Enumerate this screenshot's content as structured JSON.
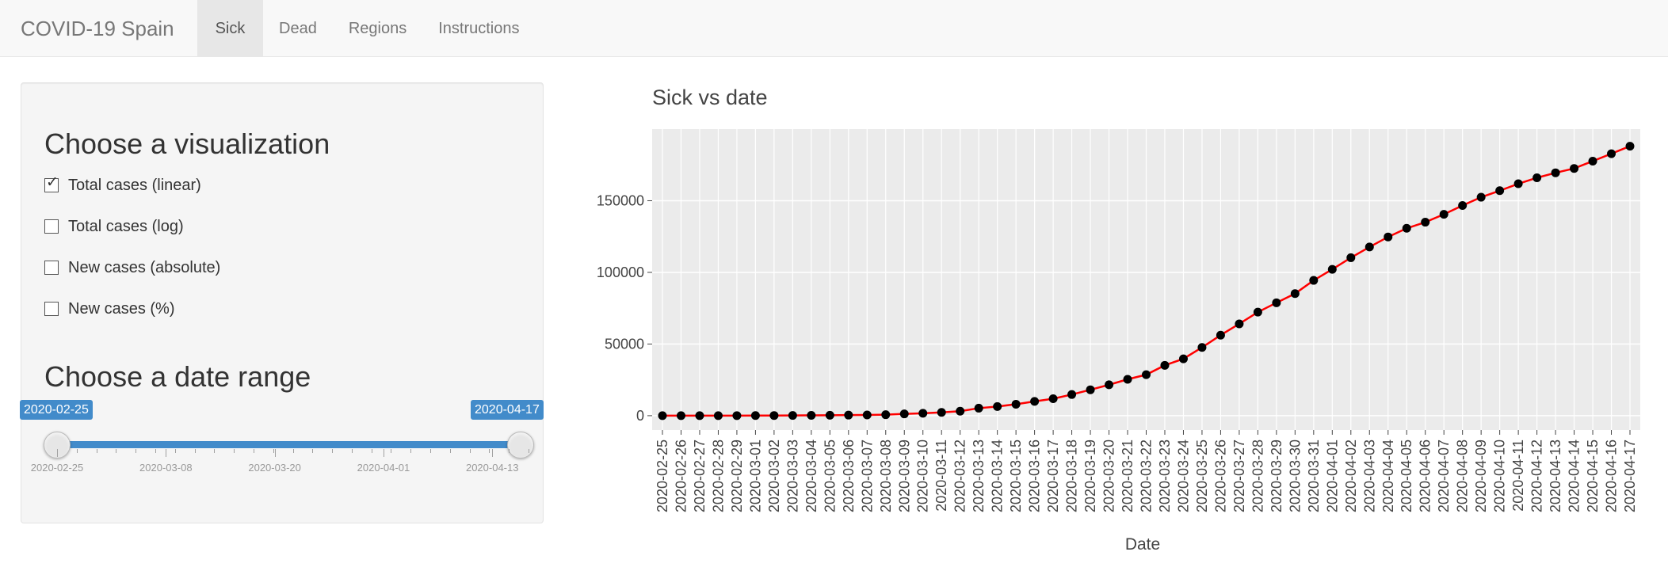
{
  "navbar": {
    "brand": "COVID-19 Spain",
    "tabs": [
      {
        "label": "Sick",
        "active": true
      },
      {
        "label": "Dead",
        "active": false
      },
      {
        "label": "Regions",
        "active": false
      },
      {
        "label": "Instructions",
        "active": false
      }
    ]
  },
  "sidebar": {
    "viz_title": "Choose a visualization",
    "options": [
      {
        "label": "Total cases (linear)",
        "checked": true
      },
      {
        "label": "Total cases (log)",
        "checked": false
      },
      {
        "label": "New cases (absolute)",
        "checked": false
      },
      {
        "label": "New cases (%)",
        "checked": false
      }
    ],
    "date_title": "Choose a date range",
    "slider": {
      "min": "2020-02-25",
      "max": "2020-04-17",
      "from": "2020-02-25",
      "to": "2020-04-17",
      "grid_labels": [
        "2020-02-25",
        "2020-03-08",
        "2020-03-20",
        "2020-04-01",
        "2020-04-13"
      ]
    }
  },
  "chart_data": {
    "type": "line",
    "title": "Sick vs date",
    "xlabel": "Date",
    "ylabel": "",
    "ylim": [
      -10000,
      200000
    ],
    "yticks": [
      0,
      50000,
      100000,
      150000
    ],
    "ytick_labels": [
      "0",
      "50000",
      "100000",
      "150000"
    ],
    "grid": true,
    "line_color": "#ff0000",
    "marker_color": "#000000",
    "background": "#ebebeb",
    "x": [
      "2020-02-25",
      "2020-02-26",
      "2020-02-27",
      "2020-02-28",
      "2020-02-29",
      "2020-03-01",
      "2020-03-02",
      "2020-03-03",
      "2020-03-04",
      "2020-03-05",
      "2020-03-06",
      "2020-03-07",
      "2020-03-08",
      "2020-03-09",
      "2020-03-10",
      "2020-03-11",
      "2020-03-12",
      "2020-03-13",
      "2020-03-14",
      "2020-03-15",
      "2020-03-16",
      "2020-03-17",
      "2020-03-18",
      "2020-03-19",
      "2020-03-20",
      "2020-03-21",
      "2020-03-22",
      "2020-03-23",
      "2020-03-24",
      "2020-03-25",
      "2020-03-26",
      "2020-03-27",
      "2020-03-28",
      "2020-03-29",
      "2020-03-30",
      "2020-03-31",
      "2020-04-01",
      "2020-04-02",
      "2020-04-03",
      "2020-04-04",
      "2020-04-05",
      "2020-04-06",
      "2020-04-07",
      "2020-04-08",
      "2020-04-09",
      "2020-04-10",
      "2020-04-11",
      "2020-04-12",
      "2020-04-13",
      "2020-04-14",
      "2020-04-15",
      "2020-04-16",
      "2020-04-17"
    ],
    "values": [
      6,
      12,
      23,
      32,
      45,
      84,
      120,
      165,
      228,
      282,
      401,
      525,
      674,
      1231,
      1695,
      2277,
      3146,
      5232,
      6391,
      7988,
      9942,
      11826,
      14769,
      18077,
      21571,
      25374,
      28603,
      35136,
      39673,
      47610,
      56188,
      64059,
      72248,
      78797,
      85195,
      94417,
      102136,
      110238,
      117710,
      124736,
      130759,
      135032,
      140510,
      146690,
      152446,
      157022,
      161852,
      166019,
      169496,
      172541,
      177633,
      182816,
      188068
    ]
  },
  "colors": {
    "accent": "#428bca",
    "navbar_bg": "#f8f8f8",
    "well_bg": "#f5f5f5"
  }
}
